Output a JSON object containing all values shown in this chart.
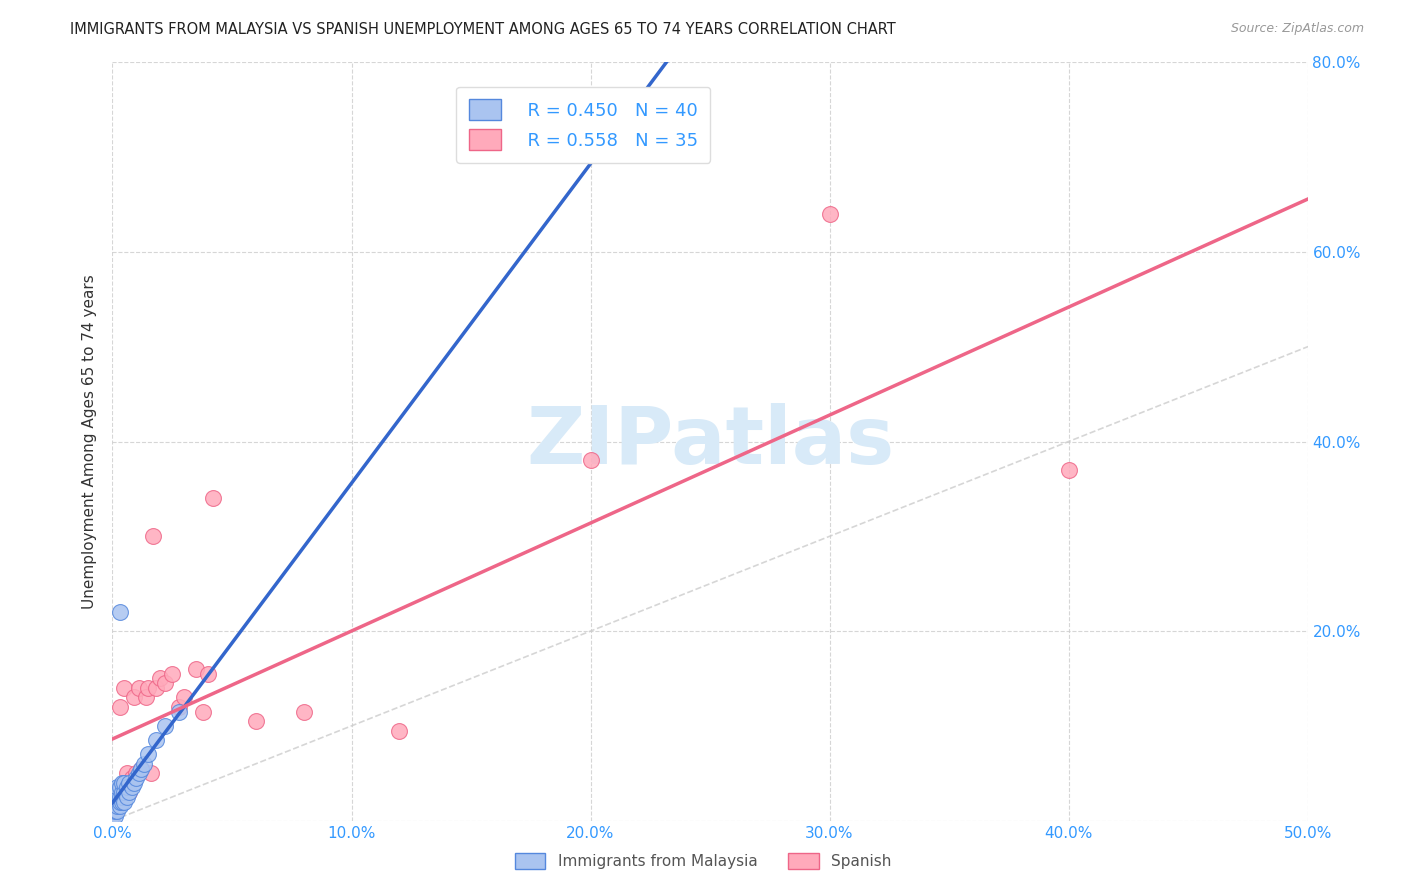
{
  "title": "IMMIGRANTS FROM MALAYSIA VS SPANISH UNEMPLOYMENT AMONG AGES 65 TO 74 YEARS CORRELATION CHART",
  "source": "Source: ZipAtlas.com",
  "ylabel": "Unemployment Among Ages 65 to 74 years",
  "xlim": [
    0.0,
    0.5
  ],
  "ylim": [
    0.0,
    0.8
  ],
  "xticks": [
    0.0,
    0.1,
    0.2,
    0.3,
    0.4,
    0.5
  ],
  "yticks": [
    0.0,
    0.2,
    0.4,
    0.6,
    0.8
  ],
  "malaysia_color": "#aac4f0",
  "malaysia_edge": "#5588dd",
  "malaysia_line_color": "#3366cc",
  "spanish_color": "#ffaabb",
  "spanish_edge": "#ee6688",
  "spanish_line_color": "#ee6688",
  "malaysia_R": 0.45,
  "malaysia_N": 40,
  "spanish_R": 0.558,
  "spanish_N": 35,
  "malaysia_x": [
    0.0,
    0.0,
    0.0,
    0.0,
    0.0,
    0.0,
    0.001,
    0.001,
    0.001,
    0.001,
    0.002,
    0.002,
    0.002,
    0.002,
    0.003,
    0.003,
    0.003,
    0.003,
    0.003,
    0.004,
    0.004,
    0.004,
    0.004,
    0.005,
    0.005,
    0.005,
    0.006,
    0.006,
    0.007,
    0.007,
    0.008,
    0.009,
    0.01,
    0.011,
    0.012,
    0.013,
    0.015,
    0.018,
    0.022,
    0.028
  ],
  "malaysia_y": [
    0.0,
    0.005,
    0.01,
    0.015,
    0.02,
    0.03,
    0.005,
    0.01,
    0.02,
    0.025,
    0.01,
    0.015,
    0.025,
    0.035,
    0.015,
    0.02,
    0.025,
    0.035,
    0.22,
    0.02,
    0.025,
    0.03,
    0.04,
    0.02,
    0.03,
    0.04,
    0.025,
    0.035,
    0.03,
    0.04,
    0.035,
    0.04,
    0.045,
    0.05,
    0.055,
    0.06,
    0.07,
    0.085,
    0.1,
    0.115
  ],
  "spanish_x": [
    0.0,
    0.001,
    0.002,
    0.003,
    0.003,
    0.004,
    0.005,
    0.005,
    0.006,
    0.007,
    0.008,
    0.009,
    0.01,
    0.011,
    0.012,
    0.014,
    0.015,
    0.016,
    0.017,
    0.018,
    0.02,
    0.022,
    0.025,
    0.028,
    0.03,
    0.035,
    0.038,
    0.04,
    0.042,
    0.06,
    0.08,
    0.12,
    0.2,
    0.3,
    0.4
  ],
  "spanish_y": [
    0.005,
    0.02,
    0.03,
    0.03,
    0.12,
    0.025,
    0.04,
    0.14,
    0.05,
    0.03,
    0.045,
    0.13,
    0.05,
    0.14,
    0.055,
    0.13,
    0.14,
    0.05,
    0.3,
    0.14,
    0.15,
    0.145,
    0.155,
    0.12,
    0.13,
    0.16,
    0.115,
    0.155,
    0.34,
    0.105,
    0.115,
    0.095,
    0.38,
    0.64,
    0.37
  ],
  "background_color": "#ffffff",
  "grid_color": "#cccccc",
  "diag_line_color": "#cccccc",
  "watermark_color": "#d8eaf8"
}
